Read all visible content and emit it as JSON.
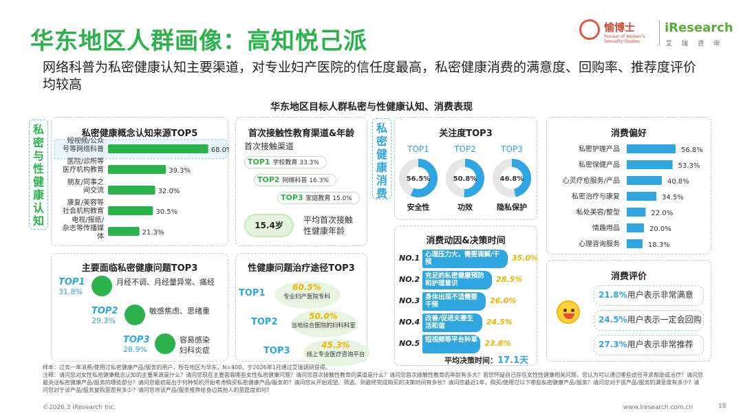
{
  "header": {
    "title": "华东地区人群画像：高知悦己派",
    "subtitle": "网络科普为私密健康认知主要渠道，对专业妇产医院的信任度最高，私密健康消费的满意度、回购率、推荐度评价均较高",
    "chart_title": "华东地区目标人群私密与性健康认知、消费表现"
  },
  "logos": {
    "brand_cn": "愉博士",
    "brand_en": "Pioneer of Women's Sexuality Studies",
    "ir": "iResearch",
    "ir_cn": "艾瑞咨询"
  },
  "side_labels": {
    "left": "私密与性健康认知",
    "middle": "私密健康消费"
  },
  "colors": {
    "green": "#2bb24c",
    "blue": "#2fa6e0",
    "yellow": "#f0b400",
    "bar_green": "#2bb24c",
    "bar_blue": "#2fa6e0"
  },
  "chart_data": [
    {
      "type": "bar",
      "title": "私密健康概念认知来源TOP5",
      "categories": [
        "短视频/公众号等网络科普",
        "医院/诊所等医疗机构教育",
        "朋友/同事之间交流",
        "康复/美容等社会机构教育",
        "电视/报纸/杂志等传播媒体"
      ],
      "values": [
        68.0,
        39.3,
        32.0,
        30.5,
        21.3
      ],
      "labels": [
        "68.0%",
        "39.3%",
        "32.0%",
        "30.5%",
        "21.3%"
      ]
    },
    {
      "type": "table",
      "title": "首次接触性教育渠道&年龄",
      "sub_label": "首次接触渠道",
      "rows": [
        {
          "rank": "TOP1",
          "name": "学校教育",
          "value": 33.3,
          "label": "33.3%"
        },
        {
          "rank": "TOP2",
          "name": "网络科普",
          "value": 16.3,
          "label": "16.3%"
        },
        {
          "rank": "TOP3",
          "name": "家庭教育",
          "value": 15.0,
          "label": "15.0%"
        }
      ],
      "avg_age_value": "15.4岁",
      "avg_age_label": "平均首次接触性健康年龄"
    },
    {
      "type": "pie",
      "title": "关注度TOP3",
      "items": [
        {
          "rank": "TOP1",
          "name": "安全性",
          "value": 56.5,
          "label": "56.5%"
        },
        {
          "rank": "TOP2",
          "name": "功效",
          "value": 50.8,
          "label": "50.8%"
        },
        {
          "rank": "TOP3",
          "name": "隐私保护",
          "value": 46.8,
          "label": "46.8%"
        }
      ]
    },
    {
      "type": "bar",
      "title": "消费偏好",
      "categories": [
        "私密护理产品",
        "私密保健产品",
        "心灵疗愈服务/产品",
        "私密治疗与康复",
        "私处美容/整型",
        "情趣用品",
        "心理咨询服务"
      ],
      "values": [
        56.8,
        53.3,
        40.8,
        34.5,
        22.0,
        20.0,
        18.3
      ],
      "labels": [
        "56.8%",
        "53.3%",
        "40.8%",
        "34.5%",
        "22.0%",
        "20.0%",
        "18.3%"
      ]
    },
    {
      "type": "table",
      "title": "主要面临私密健康问题TOP3",
      "rows": [
        {
          "rank": "TOP1",
          "value": 31.8,
          "label": "31.8%",
          "name": "月经不调、月经量异常、痛经"
        },
        {
          "rank": "TOP2",
          "value": 29.3,
          "label": "29.3%",
          "name": "敏感焦虑、思绪重"
        },
        {
          "rank": "TOP3",
          "value": 28.9,
          "label": "28.9%",
          "name": "容易感染妇科炎症"
        }
      ]
    },
    {
      "type": "table",
      "title": "性健康问题治疗途径TOP3",
      "rows": [
        {
          "rank": "TOP1",
          "value": 60.5,
          "label": "60.5%",
          "name": "专业妇产医院专科"
        },
        {
          "rank": "TOP2",
          "value": 50.0,
          "label": "50.0%",
          "name": "当地综合医院的妇科科室"
        },
        {
          "rank": "TOP3",
          "value": 45.3,
          "label": "45.3%",
          "name": "线上专业医疗咨询平台"
        }
      ]
    },
    {
      "type": "bar",
      "title": "消费动因&决策时间",
      "categories": [
        "心理压力大，需要调解/干预",
        "充足的私密健康预防和护理意识",
        "身体出现不适需要干预",
        "改善/促进夫妻生活和谐",
        "短视频等平台种草"
      ],
      "ranks": [
        "NO.1",
        "NO.2",
        "NO.3",
        "NO.4",
        "NO.5"
      ],
      "values": [
        35.0,
        28.5,
        26.0,
        24.5,
        23.8
      ],
      "labels": [
        "35.0%",
        "28.5%",
        "26.0%",
        "24.5%",
        "23.8%"
      ],
      "avg_time_label": "平均决策时间：",
      "avg_time_value": "17.1天"
    },
    {
      "type": "table",
      "title": "消费评价",
      "rows": [
        {
          "value": 21.8,
          "label": "21.8%",
          "text": "用户表示非常满意"
        },
        {
          "value": 24.5,
          "label": "24.5%",
          "text": "用户表示一定会回购"
        },
        {
          "value": 27.3,
          "label": "27.3%",
          "text": "用户表示非常推荐"
        }
      ]
    }
  ],
  "notes": {
    "sample": "样本：过去一年消费/使用过私密健康产品/服务的用户，所在地区为华东，N=400，于2026年1月通过艾瑞调研获得。",
    "note": "注释：请问您对女性私密健康概念认知的主要来源是什么？请问您现在主要面临哪些女性私密健康问题？请问您首次接触性教育的渠道是什么？请问您首次接触性教育的年龄有多大？若您怀疑自己存在女性性健康相关问题，您认为可以通过哪些途径寻求帮助或治疗？请问您最关注私密健康产品/服务的哪些部分？请问您最初是出于何种契机开始考虑购买私密健康产品/服务的？请问您从开始观望、筛选、到最终完成购买的决策时间有多长？请问您最近1年，购买/使用过以下哪些私密健康产品/服务？请问您对于该产品/服务的满意度有多少？请问您对于该产品/服务复购意愿有多少？请问您将该产品/服务推荐给身边其他人的意愿度如何？"
  },
  "footer": {
    "copyright": "©2026.3 iResearch Inc.",
    "site": "www.iresearch.com.cn",
    "page": "18"
  }
}
